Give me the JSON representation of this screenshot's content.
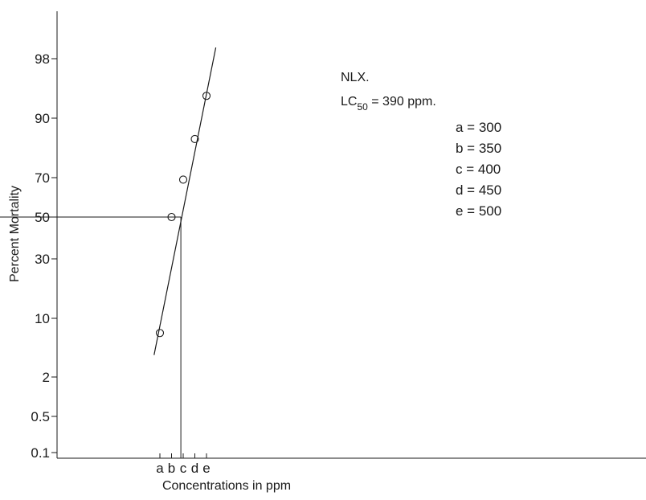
{
  "chart_data": {
    "type": "scatter",
    "title": "",
    "xlabel": "Concentrations in ppm",
    "ylabel": "Percent Mortality",
    "x_tick_labels": [
      "a",
      "b",
      "c",
      "d",
      "e"
    ],
    "x_tick_values": [
      300,
      350,
      400,
      450,
      500
    ],
    "y_scale": "probit",
    "y_ticks": [
      0.1,
      0.5,
      2,
      10,
      30,
      50,
      70,
      90,
      98
    ],
    "y_tick_labels": [
      "0.1",
      "0.5",
      "2",
      "10",
      "30",
      "50",
      "70",
      "90",
      "98"
    ],
    "grid": false,
    "series": [
      {
        "points": [
          {
            "x": 300,
            "y": 8
          },
          {
            "x": 350,
            "y": 50
          },
          {
            "x": 400,
            "y": 69
          },
          {
            "x": 450,
            "y": 83
          },
          {
            "x": 500,
            "y": 93
          }
        ],
        "marker": "open-circle"
      }
    ],
    "fit_line": {
      "from": {
        "x": 275,
        "y": 5
      },
      "to": {
        "x": 540,
        "y": 99.5
      }
    },
    "lc50": {
      "x": 390,
      "y": 50
    },
    "annotations": {
      "product": "NLX.",
      "lc_prefix": "LC",
      "lc_subscript": "50",
      "lc_value_text": " = 390 ppm.",
      "legend": [
        "a = 300",
        "b = 350",
        "c = 400",
        "d = 450",
        "e = 500"
      ]
    }
  }
}
